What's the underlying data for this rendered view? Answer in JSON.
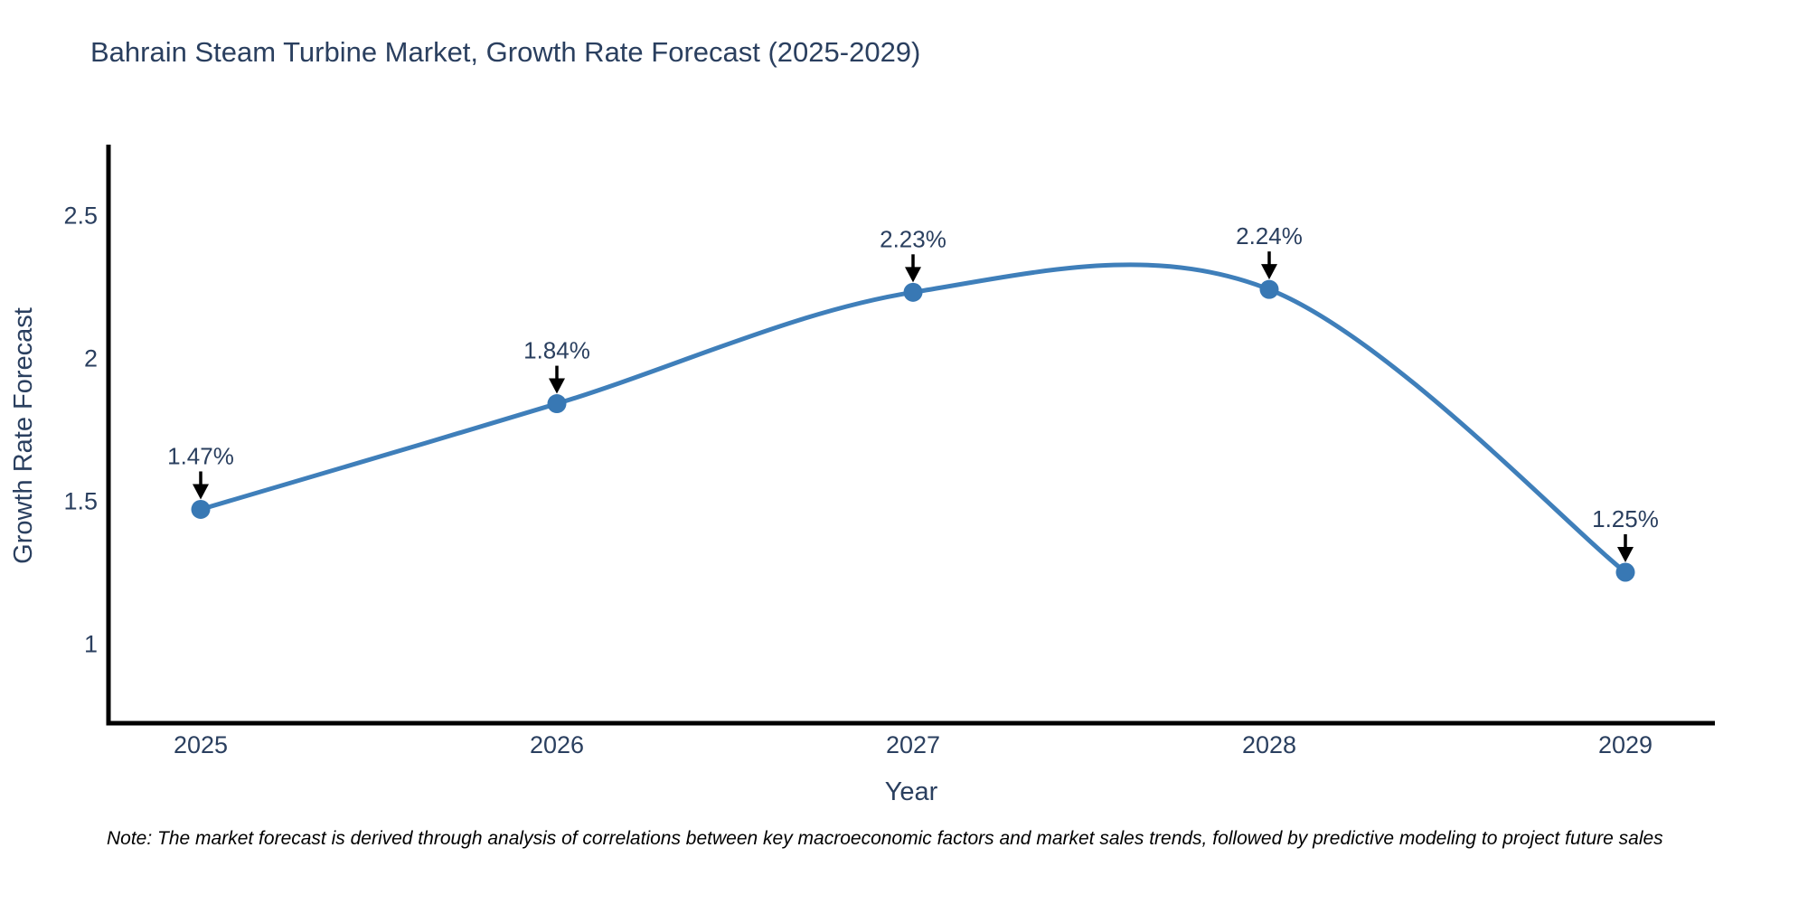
{
  "chart_data": {
    "type": "line",
    "title": "Bahrain Steam Turbine Market, Growth Rate Forecast (2025-2029)",
    "x": [
      "2025",
      "2026",
      "2027",
      "2028",
      "2029"
    ],
    "y": [
      1.47,
      1.84,
      2.23,
      2.24,
      1.25
    ],
    "point_labels": [
      "1.47%",
      "1.84%",
      "2.23%",
      "2.24%",
      "1.25%"
    ],
    "xlabel": "Year",
    "ylabel": "Growth Rate Forecast",
    "ytick_labels": [
      "1",
      "1.5",
      "2",
      "2.5"
    ],
    "ytick_values": [
      1,
      1.5,
      2,
      2.5
    ],
    "ylim": [
      0.72,
      2.75
    ],
    "line_shape": "spline",
    "grid": false,
    "legend_position": "none",
    "footnote": "Note: The market forecast is derived through analysis of correlations between key macroeconomic factors and market sales trends, followed by predictive modeling to project future sales",
    "colors": {
      "line": "#3f7fba",
      "marker": "#3878b4",
      "arrow": "#000000",
      "axis_line": "#000000",
      "tick_text": "#2a3f5f",
      "annotation_text": "#2a3f5f",
      "title_text": "#2a3f5f",
      "note_text": "#000000",
      "background": "#ffffff"
    }
  }
}
